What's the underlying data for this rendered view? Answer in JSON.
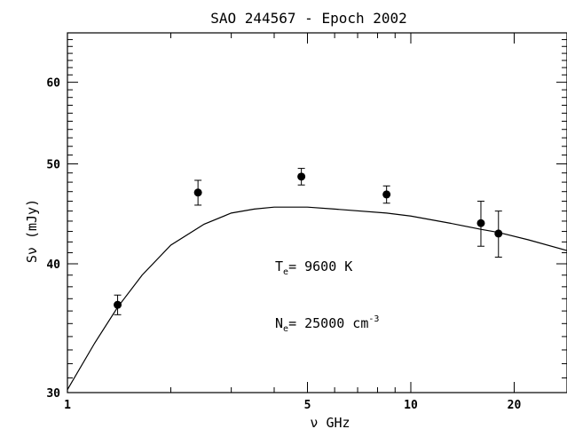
{
  "chart_data": {
    "type": "scatter",
    "title": "SAO 244567 - Epoch 2002",
    "xlabel": "ν  GHz",
    "ylabel": "Sν (mJy)",
    "xscale": "log",
    "yscale": "log",
    "xlim": [
      1,
      28.5
    ],
    "ylim": [
      30,
      67
    ],
    "x_ticks": [
      1,
      5,
      10,
      20
    ],
    "y_ticks": [
      30,
      40,
      50,
      60
    ],
    "x_tick_labels": [
      "1",
      "5",
      "10",
      "20"
    ],
    "y_tick_labels": [
      "30",
      "40",
      "50",
      "60"
    ],
    "points": [
      {
        "x": 1.4,
        "y": 36.5,
        "err": 0.8
      },
      {
        "x": 2.4,
        "y": 46.9,
        "err": 1.3
      },
      {
        "x": 4.8,
        "y": 48.6,
        "err": 0.9
      },
      {
        "x": 8.5,
        "y": 46.7,
        "err": 0.9
      },
      {
        "x": 16.0,
        "y": 43.8,
        "err": 2.2
      },
      {
        "x": 18.0,
        "y": 42.8,
        "err": 2.2
      }
    ],
    "model_curve": [
      [
        1.0,
        30.2
      ],
      [
        1.2,
        33.5
      ],
      [
        1.4,
        36.3
      ],
      [
        1.65,
        39.0
      ],
      [
        2.0,
        41.7
      ],
      [
        2.5,
        43.7
      ],
      [
        3.0,
        44.8
      ],
      [
        3.5,
        45.2
      ],
      [
        4.0,
        45.4
      ],
      [
        5.0,
        45.4
      ],
      [
        6.0,
        45.2
      ],
      [
        8.5,
        44.8
      ],
      [
        10.0,
        44.5
      ],
      [
        13.0,
        43.8
      ],
      [
        16.0,
        43.2
      ],
      [
        18.0,
        42.9
      ],
      [
        22.0,
        42.2
      ],
      [
        28.5,
        41.2
      ]
    ],
    "annotations": {
      "te_main": "T",
      "te_sub": "e",
      "te_value": "=  9600 K",
      "ne_main": "N",
      "ne_sub": "e",
      "ne_value": "= 25000 cm",
      "ne_sup": "-3"
    },
    "grid": false,
    "legend": "none"
  }
}
